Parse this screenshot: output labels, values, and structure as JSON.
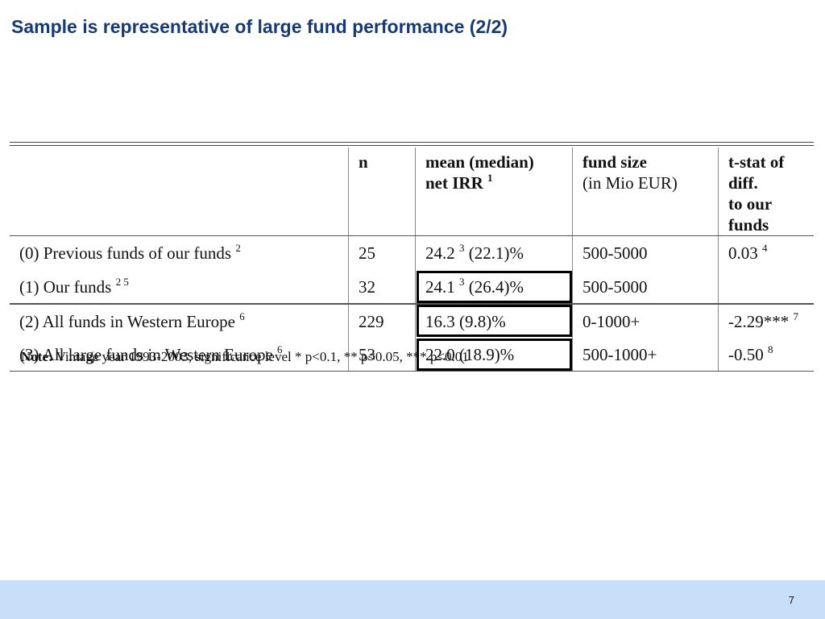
{
  "slide": {
    "title": "Sample is representative of large fund performance (2/2)",
    "page_number": "7"
  },
  "table": {
    "headers": {
      "label": "",
      "n": "n",
      "irr_line1": "mean (median)",
      "irr_line2": "net IRR",
      "irr_sup": "1",
      "size_line1": "fund size",
      "size_line2": "(in Mio EUR)",
      "t_line1": "t-stat of diff.",
      "t_line2": "to our funds"
    },
    "rows": [
      {
        "label": "(0) Previous funds of our funds",
        "label_sup": "2",
        "n": "25",
        "irr_mean": "24.2",
        "irr_sup": "3",
        "irr_rest": "(22.1)%",
        "size": "500-5000",
        "tstat": "0.03",
        "tstat_sup": "4"
      },
      {
        "label": "(1) Our funds",
        "label_sup": "2 5",
        "n": "32",
        "irr_mean": "24.1",
        "irr_sup": "3",
        "irr_rest": "(26.4)%",
        "size": "500-5000",
        "tstat": "",
        "tstat_sup": ""
      },
      {
        "label": "(2) All funds in Western Europe",
        "label_sup": "6",
        "n": "229",
        "irr_mean": "16.3 (9.8)%",
        "irr_sup": "",
        "irr_rest": "",
        "size": "0-1000+",
        "tstat": "-2.29***",
        "tstat_sup": "7"
      },
      {
        "label": "(3) All large funds in Western Europe",
        "label_sup": "6",
        "n": "53",
        "irr_mean": "22.0 (18.9)%",
        "irr_sup": "",
        "irr_rest": "",
        "size": "500-1000+",
        "tstat": "-0.50",
        "tstat_sup": "8"
      }
    ]
  },
  "note": {
    "label": "Note:",
    "text": "Vintage year 1993-2003, significance level * p<0.1, ** p<0.05, *** p<0.01"
  },
  "colors": {
    "title": "#173a74",
    "footer_band": "#c7dff8"
  }
}
